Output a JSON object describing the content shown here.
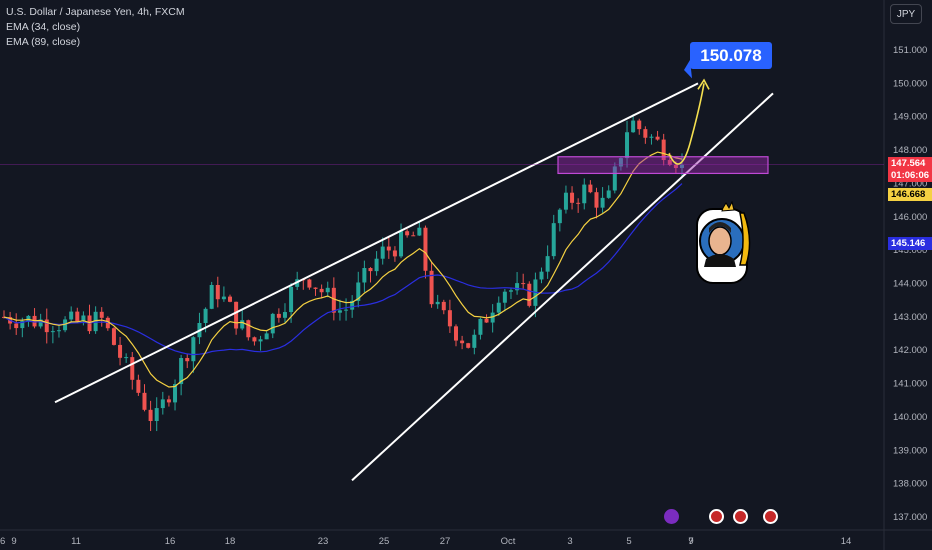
{
  "legend": {
    "title": "U.S. Dollar / Japanese Yen, 4h, FXCM",
    "ema1": "EMA (34, close)",
    "ema2": "EMA (89, close)"
  },
  "currency_button": "JPY",
  "target_label": "150.078",
  "price_tags": {
    "last_price": "147.564",
    "countdown": "01:06:06",
    "ema34": "146.668",
    "ema89": "145.146"
  },
  "colors": {
    "background": "#131722",
    "up": "#26a69a",
    "down": "#ef5350",
    "ema34": "#f5d142",
    "ema89": "#2a2ee0",
    "target": "#2962ff",
    "zone": "#9c27b0"
  },
  "chart_data": {
    "type": "candlestick",
    "title": "U.S. Dollar / Japanese Yen, 4h, FXCM",
    "ylim": [
      136.7,
      151.3
    ],
    "y_ticks": [
      "151.000",
      "150.000",
      "149.000",
      "148.000",
      "147.000",
      "146.000",
      "145.000",
      "144.000",
      "143.000",
      "142.000",
      "141.000",
      "140.000",
      "139.000",
      "138.000",
      "137.000"
    ],
    "x_ticks": [
      "9",
      "11",
      "16",
      "18",
      "23",
      "25",
      "27",
      "Oct",
      "3",
      "5",
      "7",
      "9",
      "14",
      "16"
    ],
    "key_points": [
      {
        "x": 0.0,
        "close": 143.0
      },
      {
        "x": 0.08,
        "close": 142.8
      },
      {
        "x": 0.13,
        "close": 142.9
      },
      {
        "x": 0.2,
        "close": 139.8
      },
      {
        "x": 0.28,
        "close": 143.9
      },
      {
        "x": 0.33,
        "close": 142.2
      },
      {
        "x": 0.4,
        "close": 144.3
      },
      {
        "x": 0.45,
        "close": 143.1
      },
      {
        "x": 0.5,
        "close": 144.9
      },
      {
        "x": 0.55,
        "close": 145.5
      },
      {
        "x": 0.57,
        "close": 143.3
      },
      {
        "x": 0.62,
        "close": 142.1
      },
      {
        "x": 0.66,
        "close": 143.9
      },
      {
        "x": 0.7,
        "close": 143.6
      },
      {
        "x": 0.74,
        "close": 146.3
      },
      {
        "x": 0.77,
        "close": 146.8
      },
      {
        "x": 0.8,
        "close": 146.3
      },
      {
        "x": 0.83,
        "close": 148.9
      },
      {
        "x": 0.9,
        "close": 147.6
      }
    ],
    "ema34_level": 146.668,
    "ema89_level": 145.146,
    "last_price": 147.564,
    "target": 150.078,
    "zone": [
      147.3,
      147.8
    ]
  }
}
